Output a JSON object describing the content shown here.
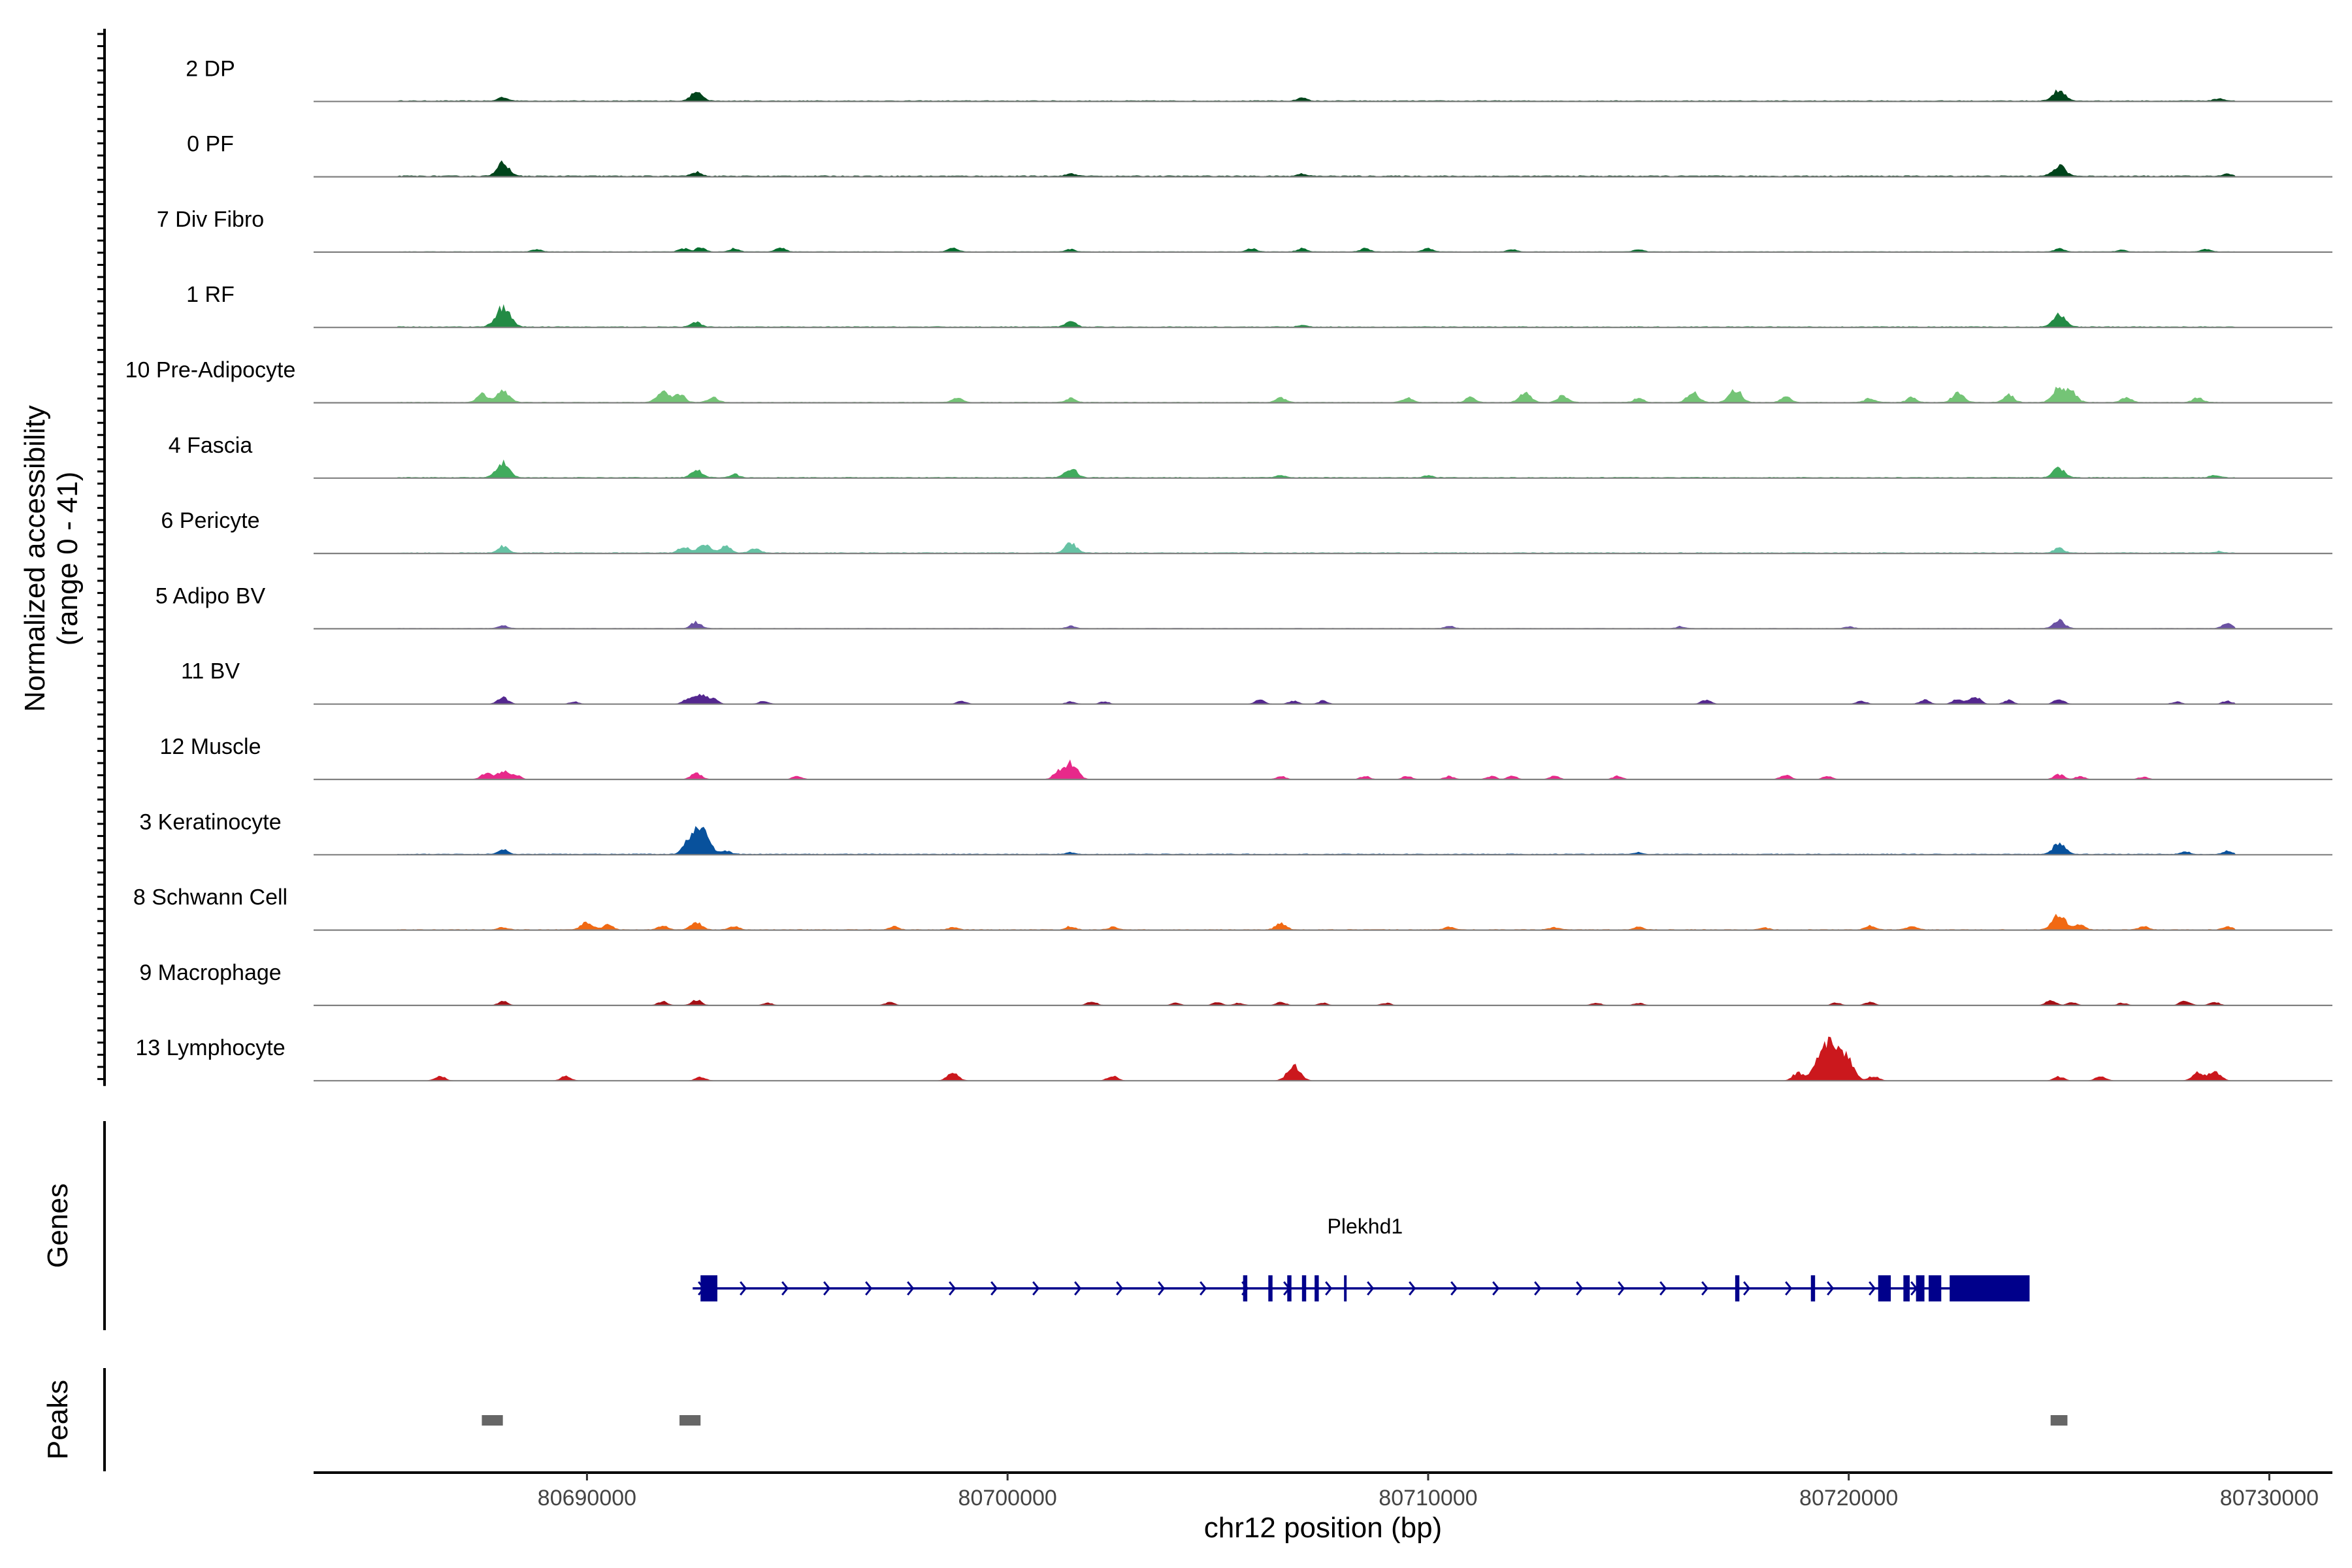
{
  "chart_data": {
    "type": "area",
    "title": "",
    "region": {
      "chromosome": "chr12",
      "start": 80683500,
      "end": 80731500
    },
    "ylabel": "Normalized accessibility",
    "ylabel_range": "(range 0 - 41)",
    "ylim": [
      0,
      41
    ],
    "xlabel": "chr12 position (bp)",
    "xticks": [
      80690000,
      80700000,
      80710000,
      80720000,
      80730000
    ],
    "xtick_labels": [
      "80690000",
      "80700000",
      "80710000",
      "80720000",
      "80730000"
    ],
    "series": [
      {
        "name": "2 DP",
        "color": "#00441b",
        "base": 0.4,
        "peaks": [
          [
            80688000,
            2.5
          ],
          [
            80692600,
            5.5
          ],
          [
            80707000,
            2
          ],
          [
            80725000,
            7
          ],
          [
            80728800,
            1.5
          ]
        ]
      },
      {
        "name": "0 PF",
        "color": "#00441b",
        "base": 0.5,
        "peaks": [
          [
            80688000,
            8
          ],
          [
            80692600,
            2.5
          ],
          [
            80701500,
            1.5
          ],
          [
            80707000,
            1.5
          ],
          [
            80725000,
            7
          ],
          [
            80729000,
            1.5
          ]
        ]
      },
      {
        "name": "7 Div Fibro",
        "color": "#006d2c",
        "base": 0.25,
        "peaks": [
          [
            80688800,
            1.5
          ],
          [
            80692300,
            2
          ],
          [
            80692700,
            2.5
          ],
          [
            80693500,
            2
          ],
          [
            80694600,
            2.5
          ],
          [
            80698700,
            2.5
          ],
          [
            80701500,
            1.5
          ],
          [
            80705800,
            2
          ],
          [
            80707000,
            2
          ],
          [
            80708500,
            2
          ],
          [
            80710000,
            2
          ],
          [
            80712000,
            1.5
          ],
          [
            80715000,
            1.5
          ],
          [
            80725000,
            2
          ],
          [
            80726500,
            1.2
          ],
          [
            80728500,
            1.5
          ]
        ]
      },
      {
        "name": "1 RF",
        "color": "#238b45",
        "base": 0.4,
        "peaks": [
          [
            80688000,
            12
          ],
          [
            80692600,
            3
          ],
          [
            80701500,
            3.5
          ],
          [
            80707000,
            1
          ],
          [
            80725000,
            8
          ]
        ]
      },
      {
        "name": "10 Pre-Adipocyte",
        "color": "#74c476",
        "base": 0.3,
        "peaks": [
          [
            80687500,
            5
          ],
          [
            80688000,
            8
          ],
          [
            80691800,
            7
          ],
          [
            80692200,
            5
          ],
          [
            80693000,
            3
          ],
          [
            80698800,
            3
          ],
          [
            80701500,
            2.5
          ],
          [
            80706500,
            3
          ],
          [
            80709500,
            3
          ],
          [
            80711000,
            3
          ],
          [
            80712300,
            6
          ],
          [
            80713200,
            4
          ],
          [
            80715000,
            2.5
          ],
          [
            80716300,
            6
          ],
          [
            80717300,
            8
          ],
          [
            80718500,
            3.5
          ],
          [
            80720500,
            2.5
          ],
          [
            80721500,
            3
          ],
          [
            80722600,
            6
          ],
          [
            80723800,
            4.5
          ],
          [
            80725000,
            9
          ],
          [
            80725300,
            6
          ],
          [
            80726600,
            3
          ],
          [
            80728300,
            3
          ]
        ]
      },
      {
        "name": "4 Fascia",
        "color": "#41ab5d",
        "base": 0.4,
        "peaks": [
          [
            80688000,
            9
          ],
          [
            80692600,
            5
          ],
          [
            80693500,
            2
          ],
          [
            80701500,
            6
          ],
          [
            80706500,
            1.5
          ],
          [
            80710000,
            1.2
          ],
          [
            80725000,
            6
          ],
          [
            80728700,
            1.5
          ]
        ]
      },
      {
        "name": "6 Pericyte",
        "color": "#66c2a4",
        "base": 0.4,
        "peaks": [
          [
            80688000,
            4
          ],
          [
            80692300,
            4
          ],
          [
            80692800,
            6
          ],
          [
            80693300,
            4
          ],
          [
            80694000,
            3
          ],
          [
            80701500,
            6
          ],
          [
            80725000,
            3
          ],
          [
            80728800,
            1
          ]
        ]
      },
      {
        "name": "5 Adipo BV",
        "color": "#6a51a3",
        "base": 0.2,
        "peaks": [
          [
            80688000,
            2
          ],
          [
            80692600,
            4
          ],
          [
            80701500,
            1.5
          ],
          [
            80710500,
            1.5
          ],
          [
            80716000,
            1.2
          ],
          [
            80720000,
            1.2
          ],
          [
            80725000,
            5
          ],
          [
            80729000,
            3
          ]
        ]
      },
      {
        "name": "11 BV",
        "color": "#54278f",
        "base": 0,
        "peaks": [
          [
            80688000,
            4
          ],
          [
            80689700,
            1.5
          ],
          [
            80692400,
            3
          ],
          [
            80692700,
            6
          ],
          [
            80693000,
            3
          ],
          [
            80694200,
            2
          ],
          [
            80698900,
            2
          ],
          [
            80701500,
            1.5
          ],
          [
            80702300,
            1.5
          ],
          [
            80706000,
            2.5
          ],
          [
            80706800,
            2
          ],
          [
            80707500,
            2
          ],
          [
            80716600,
            2.5
          ],
          [
            80720300,
            2
          ],
          [
            80721800,
            2.5
          ],
          [
            80722600,
            3.5
          ],
          [
            80723000,
            4.5
          ],
          [
            80723800,
            2.5
          ],
          [
            80725000,
            3
          ],
          [
            80727800,
            1.5
          ],
          [
            80729000,
            2
          ]
        ]
      },
      {
        "name": "12 Muscle",
        "color": "#e7298a",
        "base": 0,
        "peaks": [
          [
            80687600,
            4
          ],
          [
            80688000,
            5
          ],
          [
            80688300,
            3
          ],
          [
            80692600,
            4
          ],
          [
            80695000,
            2
          ],
          [
            80701200,
            4
          ],
          [
            80701500,
            10
          ],
          [
            80706500,
            2
          ],
          [
            80708500,
            2
          ],
          [
            80709500,
            2
          ],
          [
            80710500,
            2
          ],
          [
            80711500,
            2
          ],
          [
            80712000,
            2
          ],
          [
            80713000,
            2
          ],
          [
            80714500,
            2
          ],
          [
            80718500,
            3
          ],
          [
            80719500,
            2
          ],
          [
            80725000,
            3
          ],
          [
            80725500,
            2
          ],
          [
            80727000,
            1.5
          ]
        ]
      },
      {
        "name": "3 Keratinocyte",
        "color": "#08519c",
        "base": 0.4,
        "peaks": [
          [
            80688000,
            3
          ],
          [
            80692400,
            5
          ],
          [
            80692700,
            16
          ],
          [
            80693300,
            2
          ],
          [
            80701500,
            1
          ],
          [
            80715000,
            1
          ],
          [
            80725000,
            7
          ],
          [
            80728000,
            1.5
          ],
          [
            80729000,
            2
          ]
        ]
      },
      {
        "name": "8 Schwann Cell",
        "color": "#f16913",
        "base": 0.3,
        "peaks": [
          [
            80688000,
            1.5
          ],
          [
            80690000,
            5
          ],
          [
            80690500,
            3
          ],
          [
            80691800,
            2.5
          ],
          [
            80692600,
            4.5
          ],
          [
            80693500,
            2
          ],
          [
            80697300,
            2
          ],
          [
            80698700,
            1.5
          ],
          [
            80701500,
            2
          ],
          [
            80702500,
            1.5
          ],
          [
            80706500,
            4
          ],
          [
            80710500,
            1.5
          ],
          [
            80713000,
            1.5
          ],
          [
            80715000,
            1.5
          ],
          [
            80718000,
            1.2
          ],
          [
            80720500,
            2.5
          ],
          [
            80721500,
            2
          ],
          [
            80725000,
            9
          ],
          [
            80725500,
            3
          ],
          [
            80727000,
            2
          ],
          [
            80729000,
            2
          ]
        ]
      },
      {
        "name": "9 Macrophage",
        "color": "#a50f15",
        "base": 0,
        "peaks": [
          [
            80688000,
            2.5
          ],
          [
            80691800,
            2.5
          ],
          [
            80692600,
            3.5
          ],
          [
            80694300,
            1.5
          ],
          [
            80697200,
            2
          ],
          [
            80702000,
            2.5
          ],
          [
            80704000,
            1.5
          ],
          [
            80705000,
            2
          ],
          [
            80705500,
            1.5
          ],
          [
            80706500,
            2
          ],
          [
            80707500,
            1.5
          ],
          [
            80709000,
            1.5
          ],
          [
            80714000,
            1.5
          ],
          [
            80715000,
            1.5
          ],
          [
            80719700,
            1.5
          ],
          [
            80720500,
            2
          ],
          [
            80724800,
            3
          ],
          [
            80725300,
            2
          ],
          [
            80726500,
            1.5
          ],
          [
            80728000,
            3
          ],
          [
            80728700,
            2
          ]
        ]
      },
      {
        "name": "13 Lymphocyte",
        "color": "#cb181d",
        "base": 0,
        "peaks": [
          [
            80686500,
            3
          ],
          [
            80689500,
            3
          ],
          [
            80692700,
            2.5
          ],
          [
            80698700,
            5
          ],
          [
            80702500,
            3
          ],
          [
            80706800,
            9
          ],
          [
            80718800,
            5
          ],
          [
            80719300,
            9
          ],
          [
            80719600,
            22
          ],
          [
            80720000,
            9
          ],
          [
            80720600,
            3
          ],
          [
            80725000,
            2.5
          ],
          [
            80726000,
            3
          ],
          [
            80728300,
            5
          ],
          [
            80728700,
            6
          ]
        ]
      }
    ],
    "genes": [
      {
        "name": "Plekhd1",
        "strand": "+",
        "start": 80692700,
        "end": 80724300,
        "exons": [
          [
            80692700,
            80693100
          ],
          [
            80705600,
            80705700
          ],
          [
            80706200,
            80706300
          ],
          [
            80706650,
            80706750
          ],
          [
            80707000,
            80707100
          ],
          [
            80707300,
            80707400
          ],
          [
            80708000,
            80708050
          ],
          [
            80717300,
            80717400
          ],
          [
            80719100,
            80719200
          ],
          [
            80720700,
            80721000
          ],
          [
            80721300,
            80721450
          ],
          [
            80721600,
            80721800
          ],
          [
            80721900,
            80722200
          ],
          [
            80722400,
            80724300
          ]
        ],
        "color": "#00008b"
      }
    ],
    "peaks": [
      [
        80687500,
        80688000
      ],
      [
        80692200,
        80692700
      ],
      [
        80724800,
        80725200
      ]
    ],
    "peak_color": "#666666",
    "panel_labels": {
      "genes": "Genes",
      "peaks": "Peaks"
    }
  }
}
